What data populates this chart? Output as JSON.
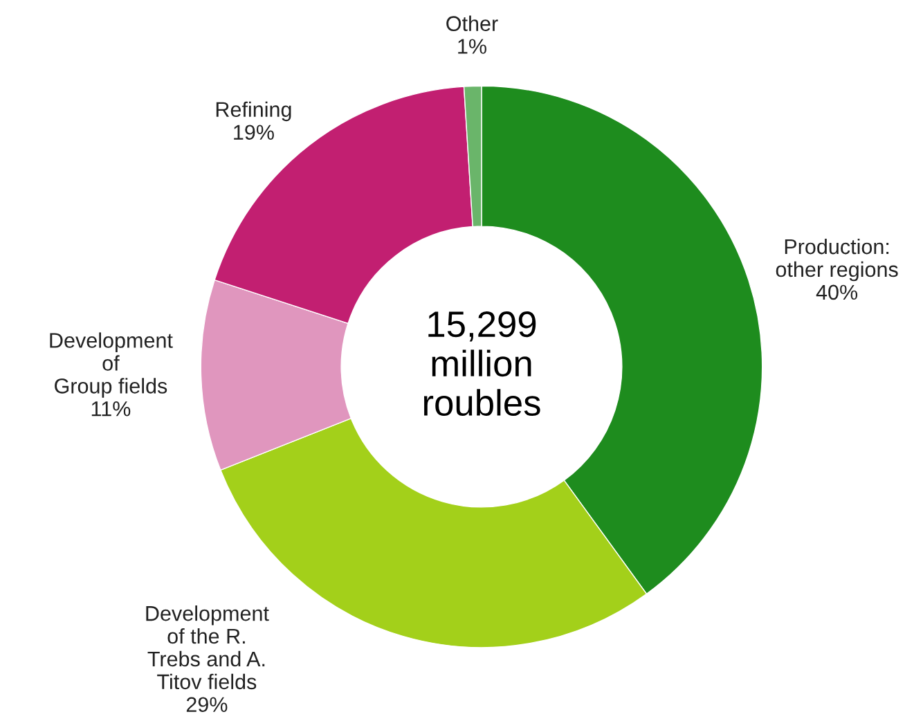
{
  "chart_data": {
    "type": "donut",
    "categories": [
      "Production:\nother regions",
      "Development\nof the R.\nTrebs and A.\nTitov fields",
      "Development\nof\nGroup fields",
      "Refining",
      "Other"
    ],
    "values": [
      40,
      29,
      11,
      19,
      1
    ],
    "value_labels": [
      "40%",
      "29%",
      "11%",
      "19%",
      "1%"
    ],
    "colors": [
      "#1e8c1e",
      "#a3d01a",
      "#e096be",
      "#c21f71",
      "#6ab56a"
    ],
    "annotations": [
      "15,299\nmillion\nroubles"
    ],
    "legend": false
  }
}
